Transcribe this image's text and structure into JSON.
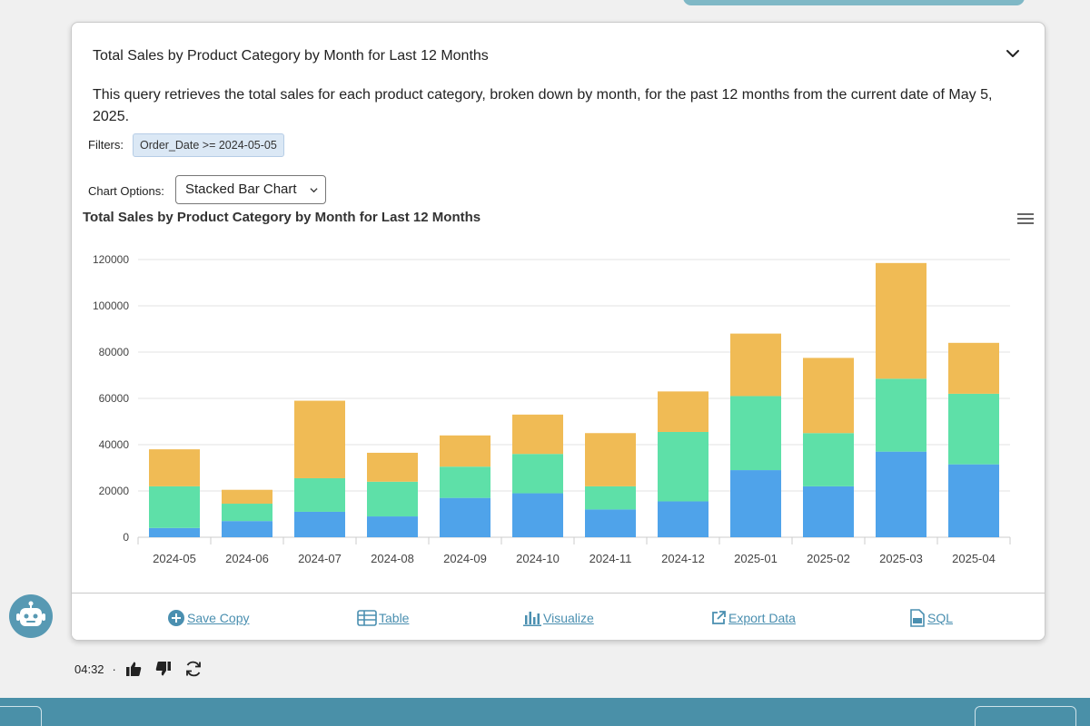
{
  "card": {
    "title": "Total Sales by Product Category by Month for Last 12 Months",
    "description": "This query retrieves the total sales for each product category, broken down by month, for the past 12 months from the current date of May 5, 2025.",
    "filters_label": "Filters:",
    "filter_chip": "Order_Date >= 2024-05-05",
    "chart_options_label": "Chart Options:",
    "chart_type_selected": "Stacked Bar Chart"
  },
  "icons": {
    "collapse": "chevron-down-icon",
    "chart_menu": "hamburger-menu-icon",
    "save": "plus-circle-icon",
    "table": "table-icon",
    "visualize": "bar-chart-icon",
    "export": "external-link-icon",
    "sql": "sql-file-icon",
    "thumbs_up": "thumbs-up-icon",
    "thumbs_down": "thumbs-down-icon",
    "regenerate": "refresh-icon"
  },
  "chart_data": {
    "type": "bar",
    "stacked": true,
    "title": "Total Sales by Product Category by Month for Last 12 Months",
    "categories": [
      "2024-05",
      "2024-06",
      "2024-07",
      "2024-08",
      "2024-09",
      "2024-10",
      "2024-11",
      "2024-12",
      "2025-01",
      "2025-02",
      "2025-03",
      "2025-04"
    ],
    "series": [
      {
        "color": "#4fa3ea",
        "values": [
          4000,
          7000,
          11000,
          9000,
          17000,
          19000,
          12000,
          15500,
          29000,
          22000,
          37000,
          31500
        ]
      },
      {
        "color": "#5ee0a8",
        "values": [
          18000,
          7500,
          14500,
          15000,
          13500,
          17000,
          10000,
          30000,
          32000,
          23000,
          31500,
          30500
        ]
      },
      {
        "color": "#f0bb55",
        "values": [
          16000,
          6000,
          33500,
          12500,
          13500,
          17000,
          23000,
          17500,
          27000,
          32500,
          50000,
          22000
        ]
      }
    ],
    "ylim": [
      0,
      120000
    ],
    "yticks": [
      0,
      20000,
      40000,
      60000,
      80000,
      100000,
      120000
    ],
    "grid": true,
    "xlabel": "",
    "ylabel": ""
  },
  "footer": {
    "save_label": "Save Copy",
    "table_label": "Table",
    "visualize_label": "Visualize",
    "export_label": "Export Data",
    "sql_label": "SQL"
  },
  "message": {
    "time": "04:32",
    "separator": "·"
  },
  "colors": {
    "accent": "#4a90a8",
    "link": "#4a8fb0",
    "avatar": "#5799b3"
  }
}
